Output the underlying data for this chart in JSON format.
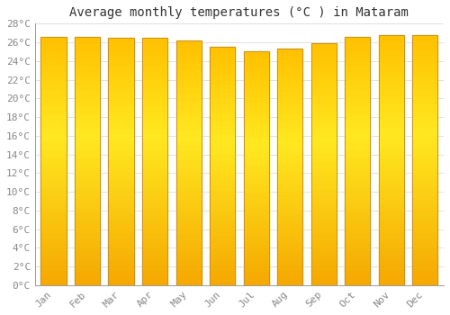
{
  "title": "Average monthly temperatures (°C ) in Mataram",
  "months": [
    "Jan",
    "Feb",
    "Mar",
    "Apr",
    "May",
    "Jun",
    "Jul",
    "Aug",
    "Sep",
    "Oct",
    "Nov",
    "Dec"
  ],
  "temperatures": [
    26.6,
    26.6,
    26.5,
    26.5,
    26.2,
    25.5,
    25.0,
    25.3,
    25.9,
    26.6,
    26.8,
    26.8
  ],
  "ylim": [
    0,
    28
  ],
  "yticks": [
    0,
    2,
    4,
    6,
    8,
    10,
    12,
    14,
    16,
    18,
    20,
    22,
    24,
    26,
    28
  ],
  "bar_color_bottom": "#F5A800",
  "bar_color_mid": "#FFD94E",
  "bar_color_top": "#FFB800",
  "bar_edge_color": "#C8922A",
  "background_color": "#FFFFFF",
  "grid_color": "#E0E0E0",
  "title_fontsize": 10,
  "tick_fontsize": 8,
  "tick_color": "#888888",
  "title_color": "#333333",
  "font_family": "monospace",
  "bar_width": 0.75
}
